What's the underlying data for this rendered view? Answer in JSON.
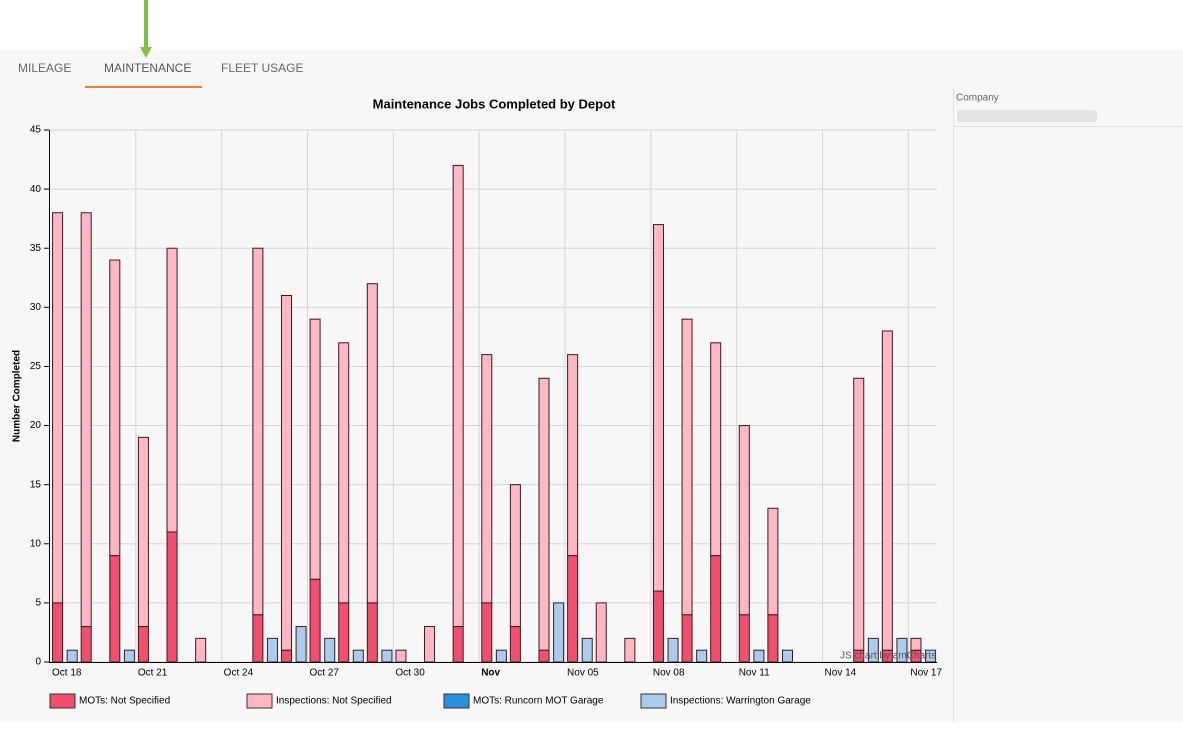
{
  "tabs": [
    "MILEAGE",
    "MAINTENANCE",
    "FLEET USAGE"
  ],
  "sidebar": {
    "label": "Company"
  },
  "chart_data": {
    "type": "bar",
    "title": "Maintenance Jobs Completed by Depot",
    "y_label": "Number Completed",
    "credit": "JS chart by amCharts",
    "x": [
      "Oct 18",
      "Oct 19",
      "Oct 20",
      "Oct 21",
      "Oct 22",
      "Oct 23",
      "Oct 24",
      "Oct 25",
      "Oct 26",
      "Oct 27",
      "Oct 28",
      "Oct 29",
      "Oct 30",
      "Oct 31",
      "Nov 01",
      "Nov 02",
      "Nov 03",
      "Nov 04",
      "Nov 05",
      "Nov 06",
      "Nov 07",
      "Nov 08",
      "Nov 09",
      "Nov 10",
      "Nov 11",
      "Nov 12",
      "Nov 13",
      "Nov 14",
      "Nov 15",
      "Nov 16",
      "Nov 17"
    ],
    "xticks": [
      "Oct 18",
      "Oct 21",
      "Oct 24",
      "Oct 27",
      "Oct 30",
      {
        "value": "Nov 02",
        "label": "Nov"
      },
      "Nov 05",
      "Nov 08",
      "Nov 11",
      "Nov 14",
      "Nov 17"
    ],
    "ylim": [
      0,
      45
    ],
    "yticks": [
      0,
      5,
      10,
      15,
      20,
      25,
      30,
      35,
      40,
      45
    ],
    "grid": true,
    "stacked": true,
    "series": [
      {
        "name": "MOTs: Not Specified",
        "color": "#f0506e",
        "values": [
          5,
          3,
          9,
          3,
          11,
          null,
          null,
          4,
          1,
          7,
          5,
          5,
          null,
          null,
          3,
          5,
          3,
          1,
          9,
          null,
          null,
          6,
          4,
          9,
          4,
          4,
          null,
          null,
          1,
          1,
          1
        ]
      },
      {
        "name": "Inspections: Not Specified",
        "color": "#fdb8c4",
        "values": [
          33,
          35,
          25,
          16,
          24,
          2,
          null,
          31,
          30,
          22,
          22,
          27,
          1,
          3,
          39,
          21,
          12,
          23,
          17,
          5,
          2,
          31,
          25,
          18,
          16,
          9,
          null,
          null,
          23,
          27,
          1
        ]
      },
      {
        "name": "MOTs: Runcorn MOT Garage",
        "color": "#2b8fe0",
        "values": [
          null,
          null,
          null,
          null,
          null,
          null,
          null,
          null,
          null,
          null,
          null,
          null,
          null,
          null,
          null,
          null,
          null,
          null,
          null,
          null,
          null,
          null,
          null,
          null,
          null,
          null,
          null,
          null,
          null,
          null,
          null
        ]
      },
      {
        "name": "Inspections: Warrington Garage",
        "color": "#aacdef",
        "values": [
          1,
          null,
          1,
          null,
          null,
          null,
          null,
          2,
          3,
          2,
          1,
          1,
          null,
          null,
          null,
          1,
          null,
          5,
          2,
          null,
          null,
          2,
          1,
          null,
          1,
          1,
          null,
          null,
          2,
          2,
          1
        ]
      }
    ]
  }
}
